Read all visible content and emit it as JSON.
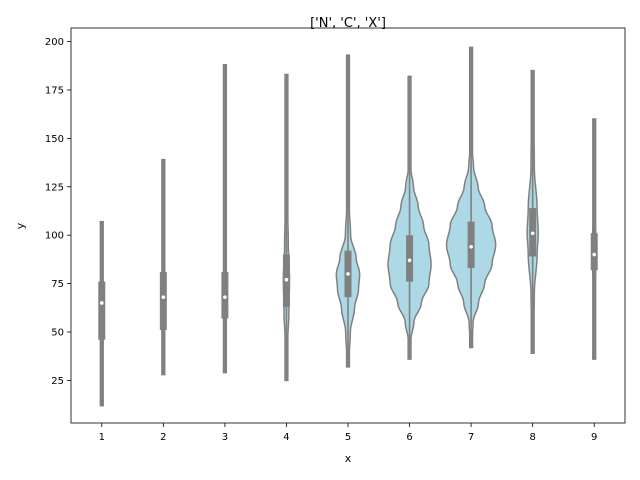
{
  "chart_data": {
    "type": "violin",
    "title": "['N', 'C', 'X']",
    "xlabel": "x",
    "ylabel": "y",
    "ylim": [
      3,
      207
    ],
    "yticks": [
      25,
      50,
      75,
      100,
      125,
      150,
      175,
      200
    ],
    "grid": false,
    "legend": "none",
    "colors": {
      "violin_fill": "#add8e6",
      "violin_edge": "#808080",
      "box": "#808080",
      "median": "#ffffff"
    },
    "categories": [
      "1",
      "2",
      "3",
      "4",
      "5",
      "6",
      "7",
      "8",
      "9"
    ],
    "violins": [
      {
        "x": "1",
        "min": 12,
        "max": 107,
        "q1": 46,
        "median": 65,
        "q3": 76,
        "whisker_low": 12,
        "whisker_high": 107,
        "max_width": 0.02,
        "density": [
          [
            12,
            0.2
          ],
          [
            40,
            0.6
          ],
          [
            60,
            1.0
          ],
          [
            75,
            0.9
          ],
          [
            90,
            0.5
          ],
          [
            107,
            0.2
          ]
        ]
      },
      {
        "x": "2",
        "min": 28,
        "max": 139,
        "q1": 51,
        "median": 68,
        "q3": 81,
        "whisker_low": 28,
        "whisker_high": 139,
        "max_width": 0.02,
        "density": [
          [
            28,
            0.2
          ],
          [
            50,
            0.7
          ],
          [
            68,
            1.0
          ],
          [
            85,
            0.8
          ],
          [
            110,
            0.4
          ],
          [
            139,
            0.2
          ]
        ]
      },
      {
        "x": "3",
        "min": 29,
        "max": 188,
        "q1": 57,
        "median": 68,
        "q3": 81,
        "whisker_low": 29,
        "whisker_high": 188,
        "max_width": 0.02,
        "density": [
          [
            29,
            0.2
          ],
          [
            55,
            0.7
          ],
          [
            68,
            1.0
          ],
          [
            85,
            0.7
          ],
          [
            120,
            0.3
          ],
          [
            188,
            0.2
          ]
        ]
      },
      {
        "x": "4",
        "min": 25,
        "max": 183,
        "q1": 63,
        "median": 77,
        "q3": 90,
        "whisker_low": 25,
        "whisker_high": 183,
        "max_width": 0.05,
        "density": [
          [
            25,
            0.2
          ],
          [
            45,
            0.4
          ],
          [
            60,
            0.8
          ],
          [
            77,
            1.0
          ],
          [
            95,
            0.6
          ],
          [
            125,
            0.2
          ],
          [
            183,
            0.1
          ]
        ]
      },
      {
        "x": "5",
        "min": 32,
        "max": 193,
        "q1": 68,
        "median": 80,
        "q3": 92,
        "whisker_low": 32,
        "whisker_high": 193,
        "max_width": 0.19,
        "density": [
          [
            32,
            0.03
          ],
          [
            50,
            0.2
          ],
          [
            62,
            0.55
          ],
          [
            72,
            0.9
          ],
          [
            80,
            1.0
          ],
          [
            88,
            0.7
          ],
          [
            100,
            0.22
          ],
          [
            120,
            0.05
          ],
          [
            150,
            0.03
          ],
          [
            193,
            0.02
          ]
        ]
      },
      {
        "x": "6",
        "min": 36,
        "max": 182,
        "q1": 76,
        "median": 87,
        "q3": 100,
        "whisker_low": 36,
        "whisker_high": 182,
        "max_width": 0.35,
        "density": [
          [
            36,
            0.02
          ],
          [
            45,
            0.04
          ],
          [
            55,
            0.2
          ],
          [
            65,
            0.55
          ],
          [
            75,
            0.9
          ],
          [
            85,
            1.0
          ],
          [
            95,
            0.9
          ],
          [
            105,
            0.65
          ],
          [
            115,
            0.4
          ],
          [
            125,
            0.18
          ],
          [
            135,
            0.05
          ],
          [
            150,
            0.02
          ],
          [
            182,
            0.01
          ]
        ]
      },
      {
        "x": "7",
        "min": 42,
        "max": 197,
        "q1": 83,
        "median": 94,
        "q3": 107,
        "whisker_low": 42,
        "whisker_high": 197,
        "max_width": 0.4,
        "density": [
          [
            42,
            0.02
          ],
          [
            55,
            0.08
          ],
          [
            65,
            0.3
          ],
          [
            75,
            0.55
          ],
          [
            85,
            0.85
          ],
          [
            95,
            1.0
          ],
          [
            105,
            0.85
          ],
          [
            115,
            0.55
          ],
          [
            125,
            0.28
          ],
          [
            135,
            0.1
          ],
          [
            145,
            0.04
          ],
          [
            165,
            0.02
          ],
          [
            197,
            0.01
          ]
        ]
      },
      {
        "x": "8",
        "min": 39,
        "max": 185,
        "q1": 89,
        "median": 101,
        "q3": 114,
        "whisker_low": 39,
        "whisker_high": 185,
        "max_width": 0.09,
        "density": [
          [
            39,
            0.05
          ],
          [
            70,
            0.3
          ],
          [
            90,
            0.8
          ],
          [
            101,
            1.0
          ],
          [
            114,
            0.8
          ],
          [
            135,
            0.3
          ],
          [
            185,
            0.05
          ]
        ]
      },
      {
        "x": "9",
        "min": 36,
        "max": 160,
        "q1": 82,
        "median": 90,
        "q3": 101,
        "whisker_low": 36,
        "whisker_high": 160,
        "max_width": 0.03,
        "density": [
          [
            36,
            0.2
          ],
          [
            70,
            0.6
          ],
          [
            90,
            1.0
          ],
          [
            110,
            0.7
          ],
          [
            160,
            0.2
          ]
        ]
      }
    ]
  }
}
